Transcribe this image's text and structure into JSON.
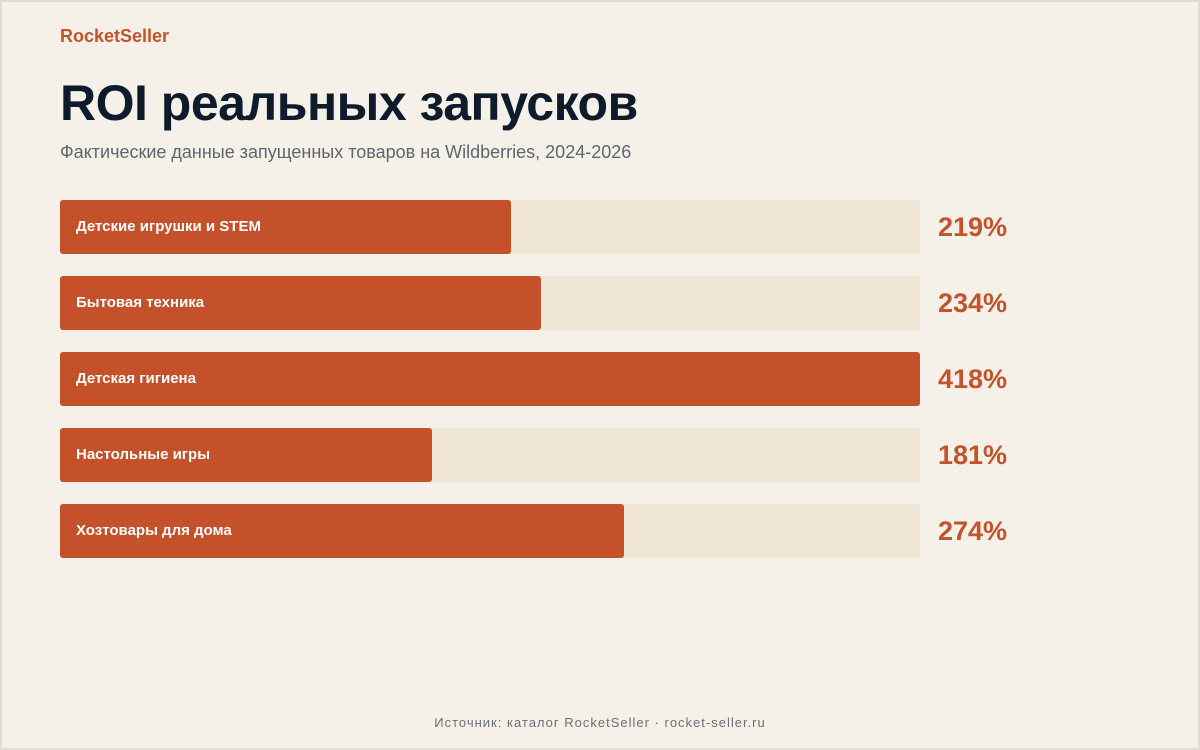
{
  "brand": "RocketSeller",
  "source": "Источник: каталог RocketSeller · rocket-seller.ru",
  "chart_data": {
    "type": "bar",
    "orientation": "horizontal",
    "title": "ROI реальных запусков",
    "subtitle": "Фактические данные запущенных товаров на Wildberries, 2024-2026",
    "categories": [
      "Детские игрушки и STEM",
      "Бытовая техника",
      "Детская гигиена",
      "Настольные игры",
      "Хозтовары для дома"
    ],
    "values": [
      219,
      234,
      418,
      181,
      274
    ],
    "value_labels": [
      "219%",
      "234%",
      "418%",
      "181%",
      "274%"
    ],
    "xlim": [
      0,
      418
    ],
    "grid": false,
    "legend": "none",
    "colors": {
      "bar": "#c5512a",
      "track": "#efe6d5",
      "value": "#c4522a"
    }
  }
}
